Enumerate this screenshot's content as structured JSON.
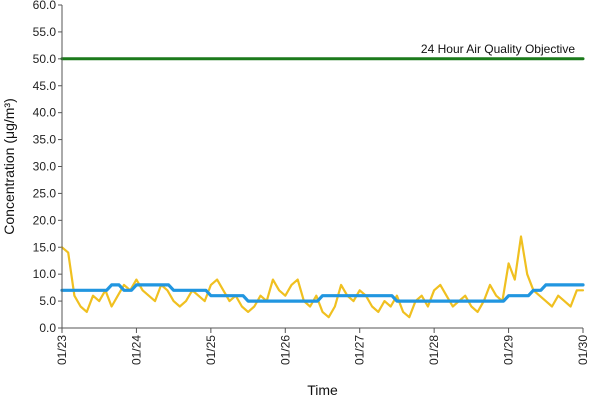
{
  "chart_data": {
    "type": "line",
    "xlabel": "Time",
    "ylabel": "Concentration (μg/m³)",
    "x_ticks": [
      "01/23",
      "01/24",
      "01/25",
      "01/26",
      "01/27",
      "01/28",
      "01/29",
      "01/30"
    ],
    "ylim": [
      0,
      60
    ],
    "y_ticks": [
      "0.0",
      "5.0",
      "10.0",
      "15.0",
      "20.0",
      "25.0",
      "30.0",
      "35.0",
      "40.0",
      "45.0",
      "50.0",
      "55.0",
      "60.0"
    ],
    "grid": false,
    "annotation": "24 Hour Air Quality Objective",
    "colors": {
      "hourly": "#f0c020",
      "daily_mean": "#2196e0",
      "objective": "#1b7a1b",
      "axis": "#555555"
    },
    "series": [
      {
        "key": "hourly",
        "x": [
          "01/23 00:00",
          "01/23 02:00",
          "01/23 04:00",
          "01/23 06:00",
          "01/23 08:00",
          "01/23 10:00",
          "01/23 12:00",
          "01/23 14:00",
          "01/23 16:00",
          "01/23 18:00",
          "01/23 20:00",
          "01/23 22:00",
          "01/24 00:00",
          "01/24 02:00",
          "01/24 04:00",
          "01/24 06:00",
          "01/24 08:00",
          "01/24 10:00",
          "01/24 12:00",
          "01/24 14:00",
          "01/24 16:00",
          "01/24 18:00",
          "01/24 20:00",
          "01/24 22:00",
          "01/25 00:00",
          "01/25 02:00",
          "01/25 04:00",
          "01/25 06:00",
          "01/25 08:00",
          "01/25 10:00",
          "01/25 12:00",
          "01/25 14:00",
          "01/25 16:00",
          "01/25 18:00",
          "01/25 20:00",
          "01/25 22:00",
          "01/26 00:00",
          "01/26 02:00",
          "01/26 04:00",
          "01/26 06:00",
          "01/26 08:00",
          "01/26 10:00",
          "01/26 12:00",
          "01/26 14:00",
          "01/26 16:00",
          "01/26 18:00",
          "01/26 20:00",
          "01/26 22:00",
          "01/27 00:00",
          "01/27 02:00",
          "01/27 04:00",
          "01/27 06:00",
          "01/27 08:00",
          "01/27 10:00",
          "01/27 12:00",
          "01/27 14:00",
          "01/27 16:00",
          "01/27 18:00",
          "01/27 20:00",
          "01/27 22:00",
          "01/28 00:00",
          "01/28 02:00",
          "01/28 04:00",
          "01/28 06:00",
          "01/28 08:00",
          "01/28 10:00",
          "01/28 12:00",
          "01/28 14:00",
          "01/28 16:00",
          "01/28 18:00",
          "01/28 20:00",
          "01/28 22:00",
          "01/29 00:00",
          "01/29 02:00",
          "01/29 04:00",
          "01/29 06:00",
          "01/29 08:00",
          "01/29 10:00",
          "01/29 12:00",
          "01/29 14:00",
          "01/29 16:00",
          "01/29 18:00",
          "01/29 20:00",
          "01/29 22:00",
          "01/30 00:00"
        ],
        "values": [
          15,
          14,
          6,
          4,
          3,
          6,
          5,
          7,
          4,
          6,
          8,
          7,
          9,
          7,
          6,
          5,
          8,
          7,
          5,
          4,
          5,
          7,
          6,
          5,
          8,
          9,
          7,
          5,
          6,
          4,
          3,
          4,
          6,
          5,
          9,
          7,
          6,
          8,
          9,
          5,
          4,
          6,
          3,
          2,
          4,
          8,
          6,
          5,
          7,
          6,
          4,
          3,
          5,
          4,
          6,
          3,
          2,
          5,
          6,
          4,
          7,
          8,
          6,
          4,
          5,
          6,
          4,
          3,
          5,
          8,
          6,
          5,
          12,
          9,
          17,
          10,
          7,
          6,
          5,
          4,
          6,
          5,
          4,
          7,
          7
        ]
      },
      {
        "key": "daily_mean",
        "x": [
          "01/23 00:00",
          "01/23 12:00",
          "01/23 16:00",
          "01/23 20:00",
          "01/24 00:00",
          "01/24 12:00",
          "01/25 00:00",
          "01/25 12:00",
          "01/26 00:00",
          "01/26 12:00",
          "01/27 00:00",
          "01/27 12:00",
          "01/28 00:00",
          "01/28 12:00",
          "01/28 18:00",
          "01/29 00:00",
          "01/29 08:00",
          "01/29 12:00",
          "01/30 00:00"
        ],
        "values": [
          7,
          7,
          8,
          7,
          8,
          7,
          6,
          5,
          5,
          6,
          6,
          5,
          5,
          5,
          5,
          6,
          7,
          8,
          8
        ]
      },
      {
        "key": "objective",
        "x": [
          "01/23 00:00",
          "01/30 00:00"
        ],
        "values": [
          50,
          50
        ]
      }
    ]
  }
}
